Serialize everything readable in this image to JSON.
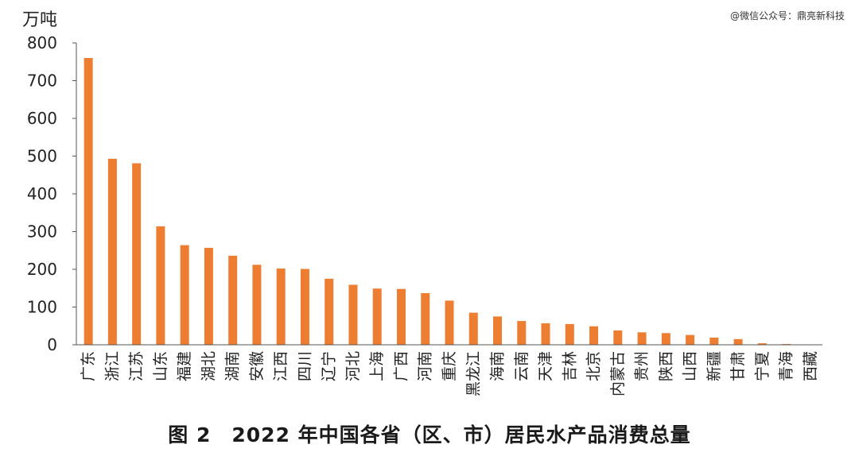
{
  "chart_data": {
    "type": "bar",
    "title": "",
    "ylabel": "万吨",
    "xlabel": "",
    "ylim": [
      0,
      800
    ],
    "yticks": [
      0,
      100,
      200,
      300,
      400,
      500,
      600,
      700,
      800
    ],
    "bar_color": "#ed7d31",
    "categories": [
      "广东",
      "浙江",
      "江苏",
      "山东",
      "福建",
      "湖北",
      "湖南",
      "安徽",
      "江西",
      "四川",
      "辽宁",
      "河北",
      "上海",
      "广西",
      "河南",
      "重庆",
      "黑龙江",
      "海南",
      "云南",
      "天津",
      "吉林",
      "北京",
      "内蒙古",
      "贵州",
      "陕西",
      "山西",
      "新疆",
      "甘肃",
      "宁夏",
      "青海",
      "西藏"
    ],
    "values": [
      760,
      493,
      481,
      314,
      264,
      257,
      236,
      212,
      202,
      201,
      175,
      159,
      149,
      148,
      137,
      117,
      85,
      75,
      63,
      57,
      55,
      49,
      38,
      33,
      31,
      26,
      19,
      15,
      4,
      2,
      0
    ]
  },
  "watermark": "@微信公众号：鼎亮新科技",
  "caption": "图 2　2022 年中国各省（区、市）居民水产品消费总量"
}
